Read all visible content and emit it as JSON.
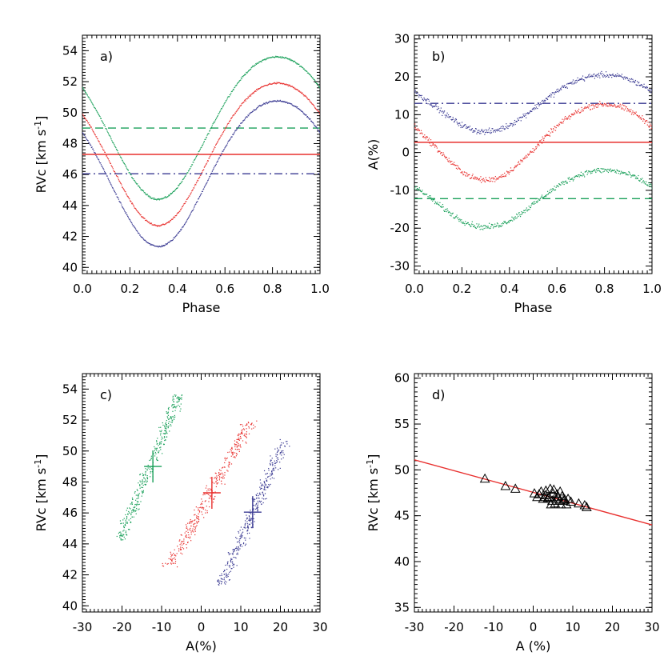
{
  "colors": {
    "green": "#1aa05a",
    "red": "#e8302e",
    "blue": "#3a3a92",
    "black": "#000000"
  },
  "chart_data": [
    {
      "id": "a",
      "panel_label": "a)",
      "type": "scatter",
      "xlabel": "Phase",
      "ylabel": "RVc [km s",
      "ylabel_sup": "-1",
      "ylabel_tail": "]",
      "xlim": [
        0,
        1
      ],
      "ylim": [
        39.6,
        55
      ],
      "xticks": [
        "0.0",
        "0.2",
        "0.4",
        "0.6",
        "0.8",
        "1.0"
      ],
      "yticks": [
        "40",
        "42",
        "44",
        "46",
        "48",
        "50",
        "52",
        "54"
      ],
      "series": [
        {
          "color": "green",
          "mean": 49.0,
          "amplitude": 4.6,
          "phase_of_min": 0.32,
          "skew": 0.18,
          "mean_line_style": "dashed"
        },
        {
          "color": "red",
          "mean": 47.3,
          "amplitude": 4.6,
          "phase_of_min": 0.32,
          "skew": 0.18,
          "mean_line_style": "solid"
        },
        {
          "color": "blue",
          "mean": 46.05,
          "amplitude": 4.7,
          "phase_of_min": 0.32,
          "skew": 0.18,
          "mean_line_style": "dashdot"
        }
      ]
    },
    {
      "id": "b",
      "panel_label": "b)",
      "type": "scatter",
      "xlabel": "Phase",
      "ylabel": "A(%)",
      "xlim": [
        0,
        1
      ],
      "ylim": [
        -32,
        31
      ],
      "xticks": [
        "0.0",
        "0.2",
        "0.4",
        "0.6",
        "0.8",
        "1.0"
      ],
      "yticks": [
        "-30",
        "-20",
        "-10",
        "0",
        "10",
        "20",
        "30"
      ],
      "series": [
        {
          "color": "blue",
          "mean": 13.0,
          "amplitude": 7.5,
          "phase_of_min": 0.3,
          "skew": 0.12,
          "mean_line_style": "dashdot"
        },
        {
          "color": "red",
          "mean": 2.7,
          "amplitude": 10.0,
          "phase_of_min": 0.3,
          "skew": 0.12,
          "mean_line_style": "solid"
        },
        {
          "color": "green",
          "mean": -12.2,
          "amplitude": 7.5,
          "phase_of_min": 0.3,
          "skew": 0.12,
          "mean_line_style": "dashed"
        }
      ]
    },
    {
      "id": "c",
      "panel_label": "c)",
      "type": "scatter",
      "xlabel": "A(%)",
      "ylabel": "RVc [km s",
      "ylabel_sup": "-1",
      "ylabel_tail": "]",
      "xlim": [
        -30,
        30
      ],
      "ylim": [
        39.6,
        55
      ],
      "xticks": [
        "-30",
        "-20",
        "-10",
        "0",
        "10",
        "20",
        "30"
      ],
      "yticks": [
        "40",
        "42",
        "44",
        "46",
        "48",
        "50",
        "52",
        "54"
      ],
      "series": [
        {
          "color": "green",
          "x_range": [
            -20.5,
            -5.5
          ],
          "y_range": [
            44.3,
            53.6
          ],
          "center": [
            -12.2,
            49.0
          ],
          "width": 2.2
        },
        {
          "color": "red",
          "x_range": [
            -8.0,
            12.5
          ],
          "y_range": [
            42.6,
            51.9
          ],
          "center": [
            2.7,
            47.3
          ],
          "width": 2.6
        },
        {
          "color": "blue",
          "x_range": [
            5.0,
            21.0
          ],
          "y_range": [
            41.3,
            50.7
          ],
          "center": [
            13.0,
            46.05
          ],
          "width": 2.4
        }
      ]
    },
    {
      "id": "d",
      "panel_label": "d)",
      "type": "scatter",
      "xlabel": "A (%)",
      "ylabel": "RVc [km s",
      "ylabel_sup": "-1",
      "ylabel_tail": "]",
      "xlim": [
        -30,
        30
      ],
      "ylim": [
        34.5,
        60.5
      ],
      "xticks": [
        "-30",
        "-20",
        "-10",
        "0",
        "10",
        "20",
        "30"
      ],
      "yticks": [
        "35",
        "40",
        "45",
        "50",
        "55",
        "60"
      ],
      "fit_line": {
        "color": "red",
        "x": [
          -30,
          30
        ],
        "y": [
          51.1,
          44.0
        ]
      },
      "points": [
        [
          -12.2,
          49.0
        ],
        [
          -7.0,
          48.2
        ],
        [
          -4.5,
          47.9
        ],
        [
          0.3,
          47.4
        ],
        [
          1.0,
          47.0
        ],
        [
          1.5,
          47.3
        ],
        [
          2.0,
          47.6
        ],
        [
          2.5,
          46.8
        ],
        [
          3.0,
          47.2
        ],
        [
          3.2,
          47.7
        ],
        [
          3.7,
          46.9
        ],
        [
          4.0,
          47.0
        ],
        [
          4.3,
          47.9
        ],
        [
          4.8,
          46.6
        ],
        [
          5.0,
          47.4
        ],
        [
          5.2,
          47.8
        ],
        [
          5.5,
          46.3
        ],
        [
          5.8,
          46.8
        ],
        [
          6.0,
          47.3
        ],
        [
          6.3,
          47.0
        ],
        [
          6.6,
          46.6
        ],
        [
          7.0,
          46.2
        ],
        [
          7.3,
          47.1
        ],
        [
          7.6,
          46.6
        ],
        [
          8.0,
          46.7
        ],
        [
          8.4,
          46.2
        ],
        [
          8.8,
          46.8
        ],
        [
          9.5,
          46.5
        ],
        [
          11.5,
          46.3
        ],
        [
          13.0,
          46.1
        ],
        [
          13.5,
          45.9
        ],
        [
          6.8,
          47.6
        ],
        [
          2.8,
          47.0
        ],
        [
          4.5,
          46.2
        ]
      ]
    }
  ]
}
